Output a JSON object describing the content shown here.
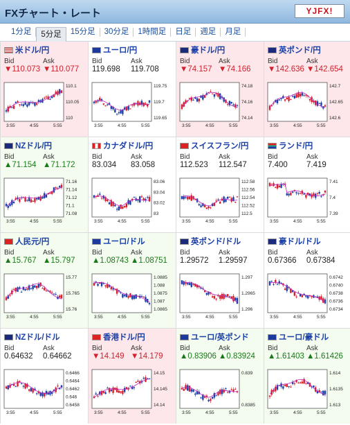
{
  "title": "FXチャート・レート",
  "logo": "YJFX!",
  "tabs": [
    "1分足",
    "5分足",
    "15分足",
    "30分足",
    "1時間足",
    "日足",
    "週足",
    "月足"
  ],
  "selected_tab": "5分足",
  "labels": {
    "bid": "Bid",
    "ask": "Ask"
  },
  "xticks": [
    "3:55",
    "4:55",
    "5:55"
  ],
  "pairs": [
    {
      "name": "米ドル/円",
      "flag": "us",
      "dir": "down",
      "bid": "▼110.073",
      "ask": "▼110.077",
      "yticks": [
        "110.1",
        "110.05",
        "110"
      ],
      "seed": 1,
      "trend": "up"
    },
    {
      "name": "ユーロ/円",
      "flag": "eu",
      "dir": "none",
      "bid": "119.698",
      "ask": "119.708",
      "yticks": [
        "119.75",
        "119.7",
        "119.65"
      ],
      "seed": 2,
      "trend": "v"
    },
    {
      "name": "豪ドル/円",
      "flag": "au",
      "dir": "down",
      "bid": "▼74.157",
      "ask": "▼74.166",
      "yticks": [
        "74.18",
        "74.16",
        "74.14"
      ],
      "seed": 3,
      "trend": "hill"
    },
    {
      "name": "英ポンド/円",
      "flag": "gb",
      "dir": "down",
      "bid": "▼142.636",
      "ask": "▼142.654",
      "yticks": [
        "142.7",
        "142.65",
        "142.6"
      ],
      "seed": 4,
      "trend": "hill"
    },
    {
      "name": "NZドル/円",
      "flag": "nz",
      "dir": "up",
      "bid": "▲71.154",
      "ask": "▲71.172",
      "yticks": [
        "71.16",
        "71.14",
        "71.12",
        "71.1",
        "71.08"
      ],
      "seed": 5,
      "trend": "up"
    },
    {
      "name": "カナダドル/円",
      "flag": "ca",
      "dir": "none",
      "bid": "83.034",
      "ask": "83.058",
      "yticks": [
        "83.06",
        "83.04",
        "83.02",
        "83"
      ],
      "seed": 6,
      "trend": "v"
    },
    {
      "name": "スイスフラン/円",
      "flag": "ch",
      "dir": "none",
      "bid": "112.523",
      "ask": "112.547",
      "yticks": [
        "112.58",
        "112.56",
        "112.54",
        "112.52",
        "112.5"
      ],
      "seed": 7,
      "trend": "v"
    },
    {
      "name": "ランド/円",
      "flag": "za",
      "dir": "none",
      "bid": "7.400",
      "ask": "7.419",
      "yticks": [
        "7.41",
        "7.4",
        "7.39"
      ],
      "seed": 8,
      "trend": "drop"
    },
    {
      "name": "人民元/円",
      "flag": "cn",
      "dir": "up",
      "bid": "▲15.767",
      "ask": "▲15.797",
      "yticks": [
        "15.77",
        "15.765",
        "15.76"
      ],
      "seed": 9,
      "trend": "hill"
    },
    {
      "name": "ユーロ/ドル",
      "flag": "eu",
      "dir": "up",
      "bid": "▲1.08743",
      "ask": "▲1.08751",
      "yticks": [
        "1.0885",
        "1.088",
        "1.0875",
        "1.087",
        "1.0865"
      ],
      "seed": 10,
      "trend": "down"
    },
    {
      "name": "英ポンド/ドル",
      "flag": "gb",
      "dir": "none",
      "bid": "1.29572",
      "ask": "1.29597",
      "yticks": [
        "1.297",
        "1.2965",
        "1.296"
      ],
      "seed": 11,
      "trend": "down"
    },
    {
      "name": "豪ドル/ドル",
      "flag": "au",
      "dir": "none",
      "bid": "0.67366",
      "ask": "0.67384",
      "yticks": [
        "0.6742",
        "0.6740",
        "0.6738",
        "0.6736",
        "0.6734"
      ],
      "seed": 12,
      "trend": "down"
    },
    {
      "name": "NZドル/ドル",
      "flag": "nz",
      "dir": "none",
      "bid": "0.64632",
      "ask": "0.64662",
      "yticks": [
        "0.6466",
        "0.6464",
        "0.6462",
        "0.646",
        "0.6458"
      ],
      "seed": 13,
      "trend": "flat"
    },
    {
      "name": "香港ドル/円",
      "flag": "hk",
      "dir": "down",
      "bid": "▼14.149",
      "ask": "▼14.179",
      "yticks": [
        "14.15",
        "14.145",
        "14.14"
      ],
      "seed": 14,
      "trend": "up"
    },
    {
      "name": "ユーロ/英ポンド",
      "flag": "eu",
      "dir": "up",
      "bid": "▲0.83906",
      "ask": "▲0.83924",
      "yticks": [
        "0.839",
        "0.8385"
      ],
      "seed": 15,
      "trend": "v"
    },
    {
      "name": "ユーロ/豪ドル",
      "flag": "eu",
      "dir": "up",
      "bid": "▲1.61403",
      "ask": "▲1.61426",
      "yticks": [
        "1.614",
        "1.6135",
        "1.613"
      ],
      "seed": 16,
      "trend": "hill"
    }
  ],
  "colors": {
    "up_candle": "#d81e2b",
    "down_candle": "#1a3fa8",
    "ma_line": "#c020c0",
    "up_text": "#1a7a1a",
    "down_text": "#d0202c"
  }
}
